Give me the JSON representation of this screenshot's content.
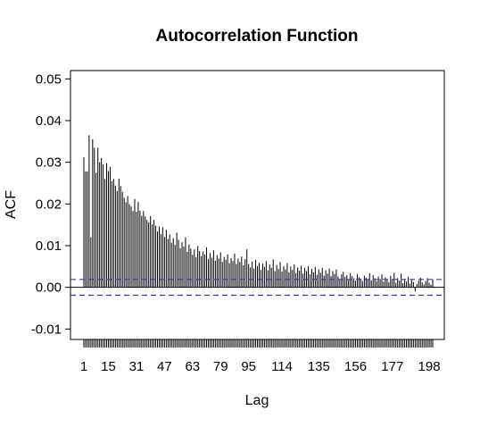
{
  "chart_data": {
    "type": "bar",
    "title": "Autocorrelation Function",
    "xlabel": "Lag",
    "ylabel": "ACF",
    "xlim": [
      0,
      200
    ],
    "ylim": [
      -0.0125,
      0.052
    ],
    "y_ticks": [
      -0.01,
      0.0,
      0.01,
      0.02,
      0.03,
      0.04,
      0.05
    ],
    "y_tick_labels": [
      "-0.01",
      "0.00",
      "0.01",
      "0.02",
      "0.03",
      "0.04",
      "0.05"
    ],
    "x_ticks": [
      1,
      15,
      31,
      47,
      63,
      79,
      95,
      114,
      135,
      156,
      177,
      198
    ],
    "x_tick_labels": [
      "1",
      "15",
      "31",
      "47",
      "63",
      "79",
      "95",
      "114",
      "135",
      "156",
      "177",
      "198"
    ],
    "confidence_bounds": [
      0.0019,
      -0.0019
    ],
    "lags": [
      1,
      2,
      3,
      4,
      5,
      6,
      7,
      8,
      9,
      10,
      11,
      12,
      13,
      14,
      15,
      16,
      17,
      18,
      19,
      20,
      21,
      22,
      23,
      24,
      25,
      26,
      27,
      28,
      29,
      30,
      31,
      32,
      33,
      34,
      35,
      36,
      37,
      38,
      39,
      40,
      41,
      42,
      43,
      44,
      45,
      46,
      47,
      48,
      49,
      50,
      51,
      52,
      53,
      54,
      55,
      56,
      57,
      58,
      59,
      60,
      61,
      62,
      63,
      64,
      65,
      66,
      67,
      68,
      69,
      70,
      71,
      72,
      73,
      74,
      75,
      76,
      77,
      78,
      79,
      80,
      81,
      82,
      83,
      84,
      85,
      86,
      87,
      88,
      89,
      90,
      91,
      92,
      93,
      94,
      95,
      96,
      97,
      98,
      99,
      100,
      101,
      102,
      103,
      104,
      105,
      106,
      107,
      108,
      109,
      110,
      111,
      112,
      113,
      114,
      115,
      116,
      117,
      118,
      119,
      120,
      121,
      122,
      123,
      124,
      125,
      126,
      127,
      128,
      129,
      130,
      131,
      132,
      133,
      134,
      135,
      136,
      137,
      138,
      139,
      140,
      141,
      142,
      143,
      144,
      145,
      146,
      147,
      148,
      149,
      150,
      151,
      152,
      153,
      154,
      155,
      156,
      157,
      158,
      159,
      160,
      161,
      162,
      163,
      164,
      165,
      166,
      167,
      168,
      169,
      170,
      171,
      172,
      173,
      174,
      175,
      176,
      177,
      178,
      179,
      180,
      181,
      182,
      183,
      184,
      185,
      186,
      187,
      188,
      189,
      190,
      191,
      192,
      193,
      194,
      195,
      196,
      197,
      198,
      199,
      200
    ],
    "values": [
      0.0312,
      0.0278,
      0.0278,
      0.0365,
      0.012,
      0.0355,
      0.0335,
      0.0275,
      0.0335,
      0.03,
      0.031,
      0.0295,
      0.026,
      0.0298,
      0.0279,
      0.0289,
      0.0255,
      0.026,
      0.0244,
      0.0231,
      0.0261,
      0.0243,
      0.0229,
      0.0215,
      0.0204,
      0.0219,
      0.0199,
      0.0194,
      0.0183,
      0.0212,
      0.0181,
      0.0205,
      0.0184,
      0.0172,
      0.0183,
      0.017,
      0.0162,
      0.0156,
      0.0171,
      0.0151,
      0.0162,
      0.0148,
      0.0134,
      0.0146,
      0.0128,
      0.0144,
      0.0121,
      0.0138,
      0.0116,
      0.0127,
      0.0107,
      0.0118,
      0.0102,
      0.0131,
      0.0114,
      0.0094,
      0.0108,
      0.0098,
      0.012,
      0.0085,
      0.0103,
      0.0093,
      0.0078,
      0.0091,
      0.0072,
      0.0099,
      0.0087,
      0.0075,
      0.0086,
      0.0079,
      0.0096,
      0.0068,
      0.0082,
      0.0071,
      0.0089,
      0.0064,
      0.0077,
      0.0069,
      0.0084,
      0.0061,
      0.0073,
      0.0066,
      0.0079,
      0.0058,
      0.007,
      0.0063,
      0.0081,
      0.0056,
      0.0069,
      0.0061,
      0.0074,
      0.0053,
      0.0068,
      0.0091,
      0.0056,
      0.0048,
      0.0062,
      0.0045,
      0.0066,
      0.0051,
      0.0059,
      0.0042,
      0.0057,
      0.0049,
      0.0063,
      0.0041,
      0.0055,
      0.0047,
      0.0067,
      0.0039,
      0.0054,
      0.0044,
      0.0061,
      0.0038,
      0.0051,
      0.0043,
      0.0058,
      0.0036,
      0.005,
      0.0042,
      0.0055,
      0.0034,
      0.0048,
      0.004,
      0.0052,
      0.0033,
      0.0047,
      0.0039,
      0.0051,
      0.0031,
      0.0044,
      0.0036,
      0.0049,
      0.003,
      0.0043,
      0.0035,
      0.0047,
      0.0028,
      0.0041,
      0.0033,
      0.0045,
      0.0027,
      0.0039,
      0.0032,
      0.0043,
      0.0026,
      0.0019,
      0.0031,
      0.0037,
      0.0025,
      0.0029,
      0.0018,
      0.0034,
      0.0027,
      0.0022,
      0.0016,
      0.0032,
      0.0024,
      0.0021,
      0.0015,
      0.0028,
      0.0023,
      0.0019,
      0.0034,
      0.0017,
      0.0029,
      0.0022,
      0.0015,
      0.0026,
      0.002,
      0.0031,
      0.0014,
      0.0024,
      0.0018,
      0.0012,
      0.0027,
      0.0019,
      0.0035,
      0.0011,
      0.0022,
      0.0016,
      0.0033,
      0.001,
      0.002,
      0.0014,
      0.0025,
      0.0009,
      0.0018,
      0.0013,
      -0.001,
      0.0008,
      0.0016,
      0.0023,
      0.0012,
      0.0007,
      0.0015,
      0.0022,
      0.0011,
      0.0006,
      0.0019,
      0.0014,
      0.001,
      -0.0012,
      0.0013,
      0.0018,
      0.0009,
      0.0015,
      0.0012,
      -0.0008
    ],
    "grid": false,
    "legend": "none"
  }
}
